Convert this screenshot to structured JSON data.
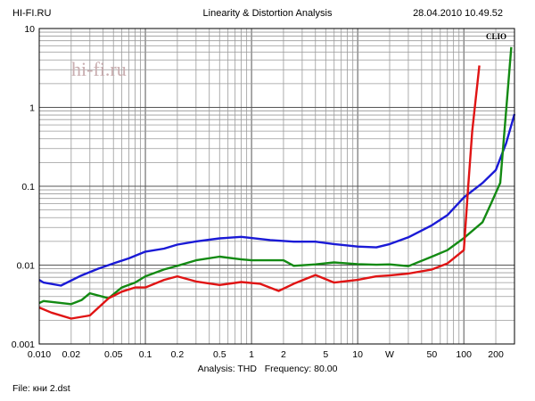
{
  "header": {
    "left": "HI-FI.RU",
    "center": "Linearity & Distortion Analysis",
    "right": "28.04.2010 10.49.52"
  },
  "watermark": "hi-fi.ru",
  "brand": "CLIO",
  "footer": {
    "analysis_label": "Analysis: THD",
    "frequency_label": "Frequency: 80.00",
    "file_label": "File: кни 2.dst"
  },
  "chart_data": {
    "type": "line",
    "x_scale": "log",
    "y_scale": "log",
    "xlim": [
      0.01,
      300
    ],
    "ylim": [
      0.001,
      10
    ],
    "grid": true,
    "x_ticks": [
      {
        "value": 0.01,
        "label": "0.010"
      },
      {
        "value": 0.02,
        "label": "0.02"
      },
      {
        "value": 0.05,
        "label": "0.05"
      },
      {
        "value": 0.1,
        "label": "0.1"
      },
      {
        "value": 0.2,
        "label": "0.2"
      },
      {
        "value": 0.5,
        "label": "0.5"
      },
      {
        "value": 1,
        "label": "1"
      },
      {
        "value": 2,
        "label": "2"
      },
      {
        "value": 5,
        "label": "5"
      },
      {
        "value": 10,
        "label": "10"
      },
      {
        "value": 20,
        "label": "W"
      },
      {
        "value": 50,
        "label": "50"
      },
      {
        "value": 100,
        "label": "100"
      },
      {
        "value": 200,
        "label": "200"
      }
    ],
    "y_ticks": [
      {
        "value": 0.001,
        "label": "0.001"
      },
      {
        "value": 0.01,
        "label": "0.01"
      },
      {
        "value": 0.1,
        "label": "0.1"
      },
      {
        "value": 1,
        "label": "1"
      },
      {
        "value": 10,
        "label": "10"
      }
    ],
    "series": [
      {
        "color": "#1a1ad6",
        "points": [
          [
            0.01,
            0.0065
          ],
          [
            0.011,
            0.006
          ],
          [
            0.016,
            0.0055
          ],
          [
            0.025,
            0.0074
          ],
          [
            0.036,
            0.009
          ],
          [
            0.05,
            0.0105
          ],
          [
            0.07,
            0.0122
          ],
          [
            0.1,
            0.0148
          ],
          [
            0.15,
            0.0162
          ],
          [
            0.2,
            0.0182
          ],
          [
            0.3,
            0.02
          ],
          [
            0.5,
            0.0218
          ],
          [
            0.8,
            0.0228
          ],
          [
            1.5,
            0.0208
          ],
          [
            2.5,
            0.0198
          ],
          [
            4,
            0.0198
          ],
          [
            6,
            0.0185
          ],
          [
            10,
            0.0172
          ],
          [
            15,
            0.0168
          ],
          [
            20,
            0.0185
          ],
          [
            30,
            0.0225
          ],
          [
            50,
            0.032
          ],
          [
            70,
            0.043
          ],
          [
            100,
            0.072
          ],
          [
            150,
            0.11
          ],
          [
            200,
            0.16
          ],
          [
            250,
            0.35
          ],
          [
            300,
            0.82
          ]
        ]
      },
      {
        "color": "#138a13",
        "points": [
          [
            0.01,
            0.0033
          ],
          [
            0.011,
            0.0035
          ],
          [
            0.02,
            0.0032
          ],
          [
            0.025,
            0.0036
          ],
          [
            0.03,
            0.0044
          ],
          [
            0.045,
            0.0038
          ],
          [
            0.06,
            0.0052
          ],
          [
            0.08,
            0.006
          ],
          [
            0.1,
            0.0072
          ],
          [
            0.15,
            0.0088
          ],
          [
            0.2,
            0.0098
          ],
          [
            0.3,
            0.0115
          ],
          [
            0.5,
            0.0128
          ],
          [
            0.8,
            0.0118
          ],
          [
            1,
            0.0115
          ],
          [
            2,
            0.0115
          ],
          [
            2.5,
            0.0098
          ],
          [
            4,
            0.0102
          ],
          [
            6,
            0.0108
          ],
          [
            10,
            0.0103
          ],
          [
            15,
            0.0101
          ],
          [
            20,
            0.0102
          ],
          [
            30,
            0.0097
          ],
          [
            50,
            0.0128
          ],
          [
            70,
            0.0155
          ],
          [
            100,
            0.022
          ],
          [
            150,
            0.035
          ],
          [
            180,
            0.06
          ],
          [
            220,
            0.11
          ],
          [
            250,
            0.9
          ],
          [
            280,
            5.8
          ]
        ]
      },
      {
        "color": "#e01414",
        "points": [
          [
            0.01,
            0.0029
          ],
          [
            0.013,
            0.0025
          ],
          [
            0.02,
            0.0021
          ],
          [
            0.03,
            0.0023
          ],
          [
            0.045,
            0.0038
          ],
          [
            0.06,
            0.0046
          ],
          [
            0.08,
            0.0052
          ],
          [
            0.1,
            0.0052
          ],
          [
            0.15,
            0.0065
          ],
          [
            0.2,
            0.0072
          ],
          [
            0.3,
            0.0062
          ],
          [
            0.5,
            0.0056
          ],
          [
            0.8,
            0.0061
          ],
          [
            1.2,
            0.0058
          ],
          [
            1.8,
            0.0047
          ],
          [
            2.5,
            0.0058
          ],
          [
            4,
            0.0075
          ],
          [
            6,
            0.006
          ],
          [
            10,
            0.0065
          ],
          [
            15,
            0.0072
          ],
          [
            20,
            0.0074
          ],
          [
            30,
            0.0078
          ],
          [
            50,
            0.0088
          ],
          [
            70,
            0.0105
          ],
          [
            100,
            0.0155
          ],
          [
            110,
            0.1
          ],
          [
            120,
            0.5
          ],
          [
            140,
            3.4
          ]
        ]
      }
    ]
  }
}
